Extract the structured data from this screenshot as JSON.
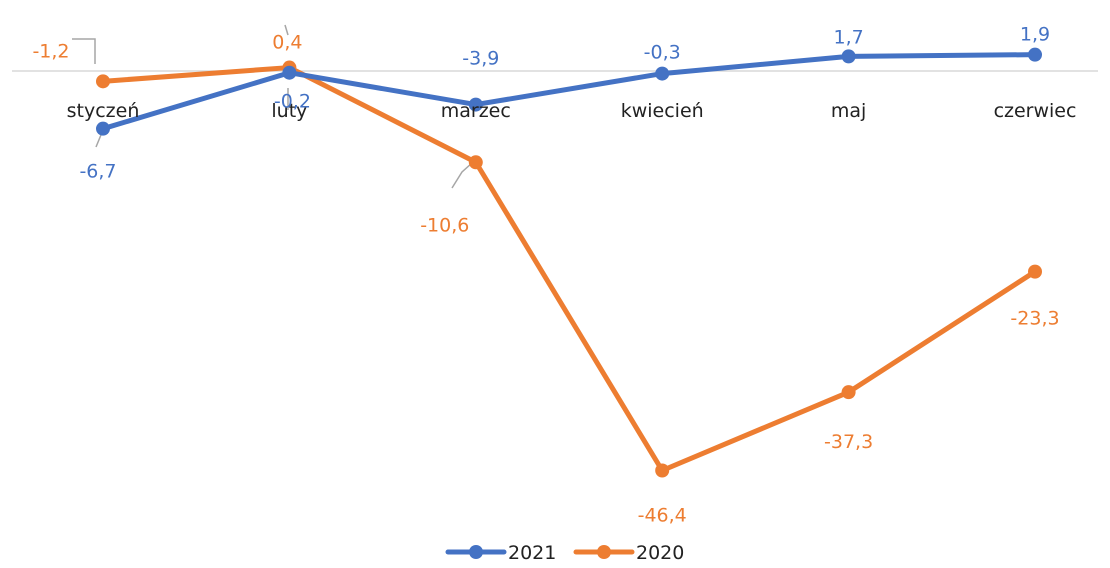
{
  "chart_data": {
    "type": "line",
    "title": "",
    "xlabel": "",
    "ylabel": "",
    "categories": [
      "styczeń",
      "luty",
      "marzec",
      "kwiecień",
      "maj",
      "czerwiec"
    ],
    "series": [
      {
        "name": "2021",
        "values": [
          -6.7,
          -0.2,
          -3.9,
          -0.3,
          1.7,
          1.9
        ],
        "labels": [
          "-6,7",
          "-0,2",
          "-3,9",
          "-0,3",
          "1,7",
          "1,9"
        ],
        "color": "#4472C4"
      },
      {
        "name": "2020",
        "values": [
          -1.2,
          0.4,
          -10.6,
          -46.4,
          -37.3,
          -23.3
        ],
        "labels": [
          "-1,2",
          "0,4",
          "-10,6",
          "-46,4",
          "-37,3",
          "-23,3"
        ],
        "color": "#ED7D31"
      }
    ],
    "ylim": [
      -47,
      2
    ],
    "grid": false,
    "legend": "bottom",
    "zero_line": true
  }
}
